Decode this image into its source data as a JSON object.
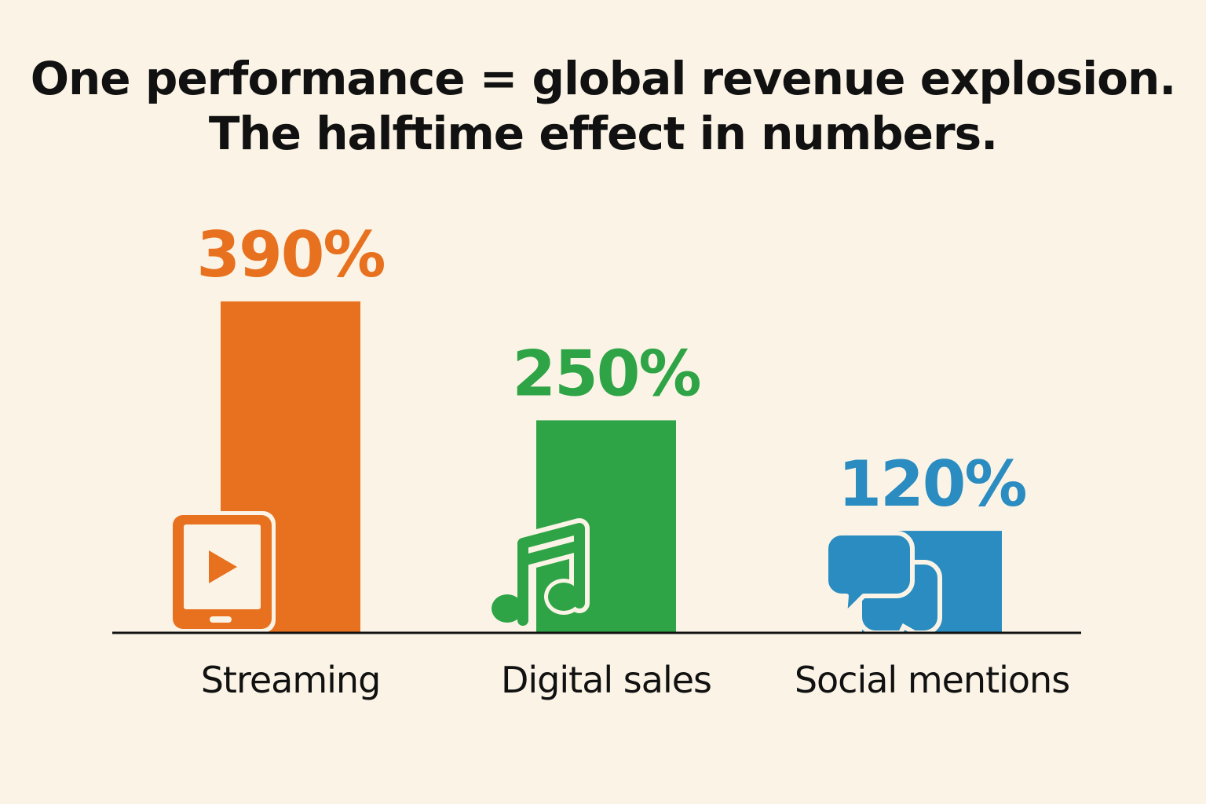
{
  "chart_data": {
    "type": "bar",
    "title_lines": [
      "One performance = global revenue explosion.",
      "The halftime effect in numbers."
    ],
    "categories": [
      "Streaming",
      "Digital sales",
      "Social mentions"
    ],
    "values": [
      390,
      250,
      120
    ],
    "value_labels": [
      "390%",
      "250%",
      "120%"
    ],
    "unit": "%",
    "colors": [
      "#E8711F",
      "#2EA446",
      "#2A8CC0"
    ],
    "icons": [
      "tablet-play-icon",
      "music-note-icon",
      "chat-bubbles-icon"
    ],
    "xlabel": "",
    "ylabel": "",
    "ylim": [
      0,
      400
    ],
    "grid": false,
    "legend": "none"
  }
}
